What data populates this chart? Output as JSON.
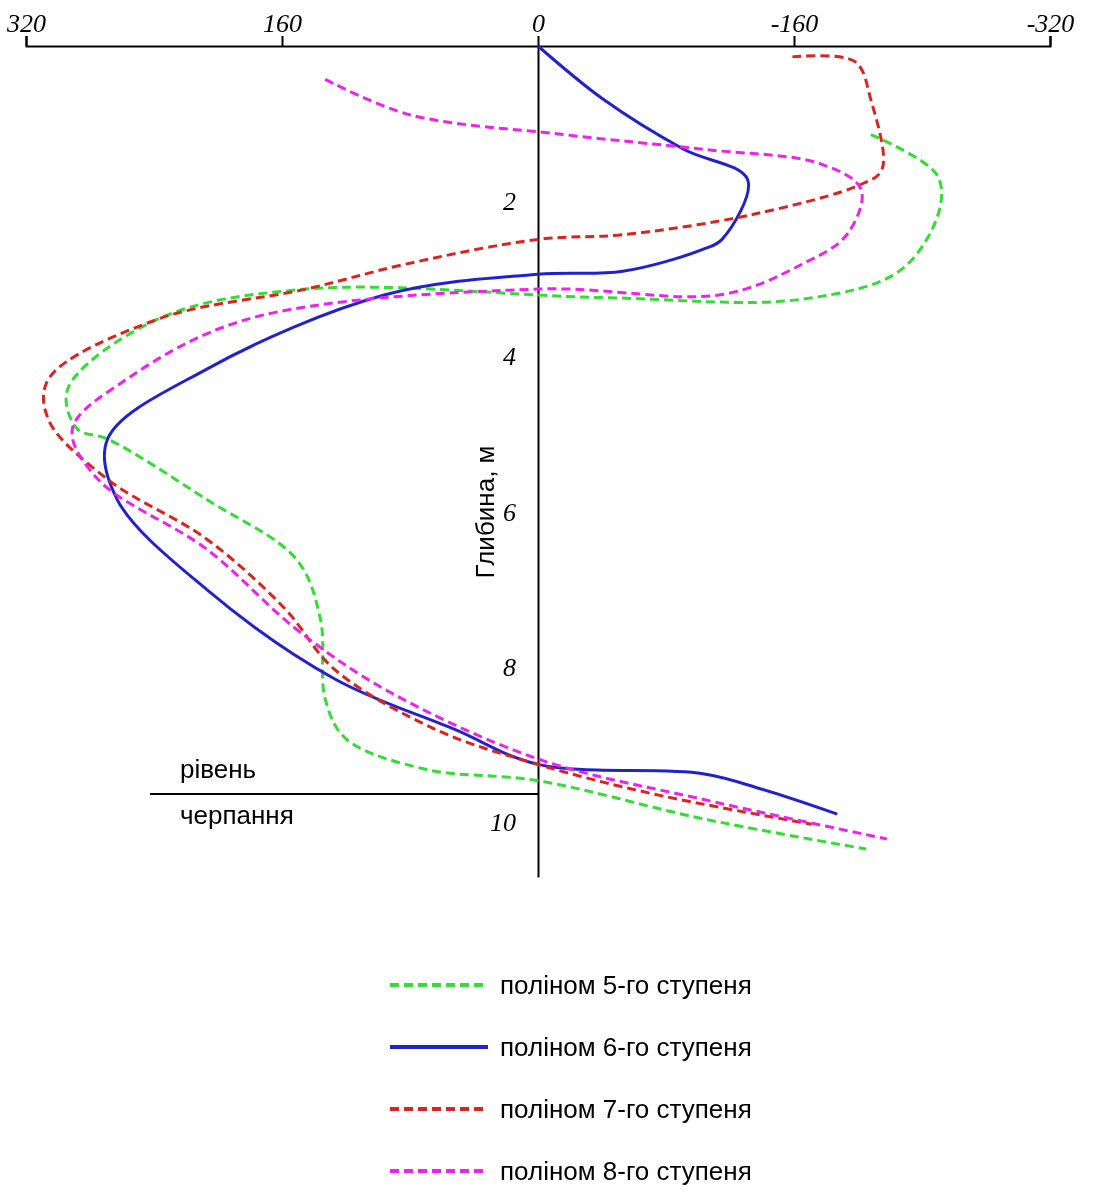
{
  "chart_data": {
    "type": "line",
    "ylabel": "Глибина, м",
    "xlim": [
      320,
      -320
    ],
    "xticks": [
      320,
      160,
      0,
      -160,
      -320
    ],
    "ylim": [
      10.7,
      0
    ],
    "yticks": [
      2,
      4,
      6,
      8,
      10
    ],
    "legend": "bottom",
    "ref_lines": [
      {
        "axis": "y",
        "value": 9.63,
        "label": "рівень черпання",
        "color": "#000000"
      }
    ],
    "series": [
      {
        "name": "поліном 5-го ступеня",
        "color": "#33dd33",
        "line_style": "dashed",
        "x": [
          -208,
          -249,
          -251,
          -227,
          -165,
          -41,
          145,
          238,
          294,
          288,
          269,
          207,
          151,
          136,
          133,
          120,
          71,
          0,
          -103,
          -205
        ],
        "values": [
          1.14,
          1.65,
          2.1,
          2.88,
          3.26,
          3.24,
          3.13,
          3.52,
          4.42,
          4.93,
          5.06,
          5.84,
          6.61,
          7.38,
          8.41,
          8.92,
          9.31,
          9.46,
          9.95,
          10.34
        ]
      },
      {
        "name": "поліном 6-го ступеня",
        "color": "#2222cc",
        "line_style": "solid",
        "x": [
          0,
          -41,
          -91,
          -131,
          -115,
          -103,
          -53,
          0,
          95,
          207,
          269,
          263,
          207,
          127,
          52,
          0,
          -103,
          -140,
          -187
        ],
        "values": [
          0,
          0.69,
          1.33,
          1.72,
          2.49,
          2.62,
          2.9,
          2.94,
          3.2,
          4.16,
          5.06,
          5.84,
          7.0,
          8.15,
          8.8,
          9.25,
          9.37,
          9.57,
          9.89
        ]
      },
      {
        "name": "поліном 7-го ступеня",
        "color": "#dd2222",
        "line_style": "dashed",
        "x": [
          -159,
          -198,
          -208,
          -215,
          -202,
          -134,
          -53,
          0,
          83,
          145,
          238,
          306,
          306,
          269,
          207,
          158,
          127,
          64,
          0,
          -72,
          -171
        ],
        "values": [
          0.14,
          0.2,
          0.69,
          1.59,
          1.78,
          2.17,
          2.43,
          2.49,
          2.81,
          3.13,
          3.52,
          4.29,
          4.81,
          5.58,
          6.35,
          7.25,
          8.03,
          8.8,
          9.25,
          9.63,
          10.02
        ]
      },
      {
        "name": "поліном 8-го ступеня",
        "color": "#ee22ee",
        "line_style": "dashed",
        "x": [
          133,
          81,
          -16,
          -103,
          -177,
          -202,
          -193,
          -165,
          -115,
          0,
          182,
          257,
          291,
          275,
          207,
          151,
          96,
          0,
          -103,
          -218
        ],
        "values": [
          0.43,
          0.88,
          1.14,
          1.33,
          1.52,
          1.85,
          2.43,
          2.81,
          3.2,
          3.13,
          3.52,
          4.29,
          4.93,
          5.58,
          6.48,
          7.51,
          8.28,
          9.18,
          9.7,
          10.21
        ]
      }
    ]
  }
}
